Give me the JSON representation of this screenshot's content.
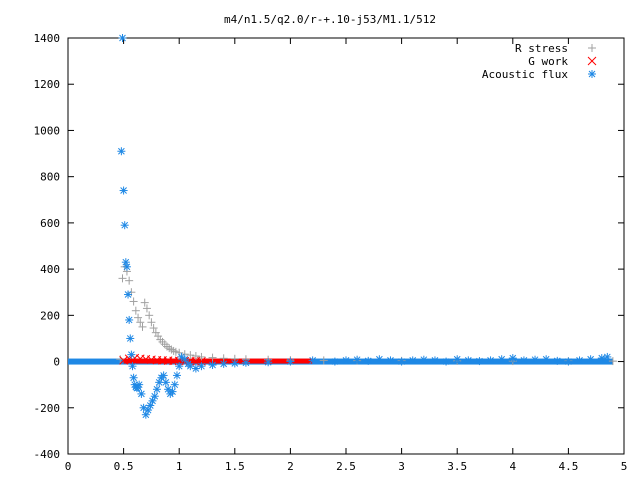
{
  "chart_data": {
    "type": "scatter",
    "title": "m4/n1.5/q2.0/r-+.10-j53/M1.1/512",
    "xlabel": "",
    "ylabel": "",
    "xlim": [
      0,
      5
    ],
    "ylim": [
      -400,
      1400
    ],
    "xticks": [
      "0",
      "0.5",
      "1",
      "1.5",
      "2",
      "2.5",
      "3",
      "3.5",
      "4",
      "4.5",
      "5"
    ],
    "yticks": [
      "-400",
      "-200",
      "0",
      "200",
      "400",
      "600",
      "800",
      "1000",
      "1200",
      "1400"
    ],
    "grid": false,
    "legend_position": "top-right",
    "series": [
      {
        "name": "R stress",
        "marker": "+",
        "color": "#a0a0a0",
        "x": [
          0.47,
          0.49,
          0.51,
          0.53,
          0.55,
          0.57,
          0.59,
          0.61,
          0.63,
          0.65,
          0.67,
          0.69,
          0.71,
          0.73,
          0.75,
          0.77,
          0.79,
          0.81,
          0.83,
          0.85,
          0.87,
          0.89,
          0.91,
          0.93,
          0.95,
          0.97,
          1.0,
          1.05,
          1.1,
          1.15,
          1.2,
          1.3,
          1.4,
          1.5,
          1.6,
          1.8,
          2.0,
          2.3,
          2.6,
          3.0,
          3.5,
          4.0,
          4.5,
          4.9
        ],
        "y": [
          10,
          360,
          410,
          390,
          350,
          300,
          260,
          220,
          190,
          170,
          150,
          255,
          230,
          200,
          170,
          145,
          125,
          110,
          95,
          85,
          75,
          65,
          58,
          52,
          46,
          42,
          38,
          32,
          28,
          24,
          20,
          17,
          14,
          12,
          10,
          8,
          6,
          5,
          4,
          3,
          3,
          2,
          2,
          2
        ]
      },
      {
        "name": "G work",
        "marker": "x",
        "color": "#ff0000",
        "x": [
          0.5,
          0.55,
          0.6,
          0.65,
          0.7,
          0.75,
          0.8,
          0.85,
          0.9,
          0.95,
          1.0,
          1.05,
          1.1,
          1.15,
          1.2
        ],
        "y": [
          5,
          12,
          15,
          12,
          10,
          8,
          6,
          5,
          4,
          3,
          3,
          2,
          2,
          1,
          1
        ]
      },
      {
        "name": "Acoustic flux",
        "marker": "*",
        "color": "#1e88e5",
        "x": [
          0.49,
          0.48,
          0.5,
          0.51,
          0.52,
          0.53,
          0.54,
          0.55,
          0.56,
          0.57,
          0.58,
          0.59,
          0.6,
          0.61,
          0.62,
          0.63,
          0.64,
          0.66,
          0.68,
          0.7,
          0.72,
          0.74,
          0.76,
          0.78,
          0.8,
          0.82,
          0.84,
          0.86,
          0.88,
          0.9,
          0.92,
          0.94,
          0.96,
          0.98,
          1.0,
          1.02,
          1.05,
          1.08,
          1.1,
          1.15,
          1.2,
          1.3,
          1.4,
          1.5,
          1.6,
          1.8,
          2.0,
          2.2,
          2.4,
          2.5,
          2.6,
          2.7,
          2.8,
          2.9,
          3.0,
          3.1,
          3.2,
          3.3,
          3.4,
          3.5,
          3.6,
          3.7,
          3.8,
          3.9,
          4.0,
          4.1,
          4.2,
          4.3,
          4.4,
          4.5,
          4.6,
          4.7,
          4.8,
          4.85
        ],
        "y": [
          1400,
          910,
          740,
          590,
          430,
          410,
          290,
          180,
          100,
          30,
          -20,
          -70,
          -100,
          -110,
          -115,
          -110,
          -100,
          -140,
          -200,
          -230,
          -210,
          -190,
          -170,
          -150,
          -120,
          -90,
          -70,
          -60,
          -90,
          -120,
          -140,
          -130,
          -100,
          -60,
          -20,
          20,
          10,
          -10,
          -20,
          -30,
          -20,
          -15,
          -10,
          -8,
          -5,
          -3,
          0,
          5,
          0,
          5,
          8,
          3,
          10,
          5,
          0,
          5,
          8,
          5,
          0,
          10,
          5,
          2,
          5,
          10,
          15,
          5,
          8,
          10,
          3,
          0,
          5,
          10,
          15,
          20
        ]
      }
    ]
  }
}
